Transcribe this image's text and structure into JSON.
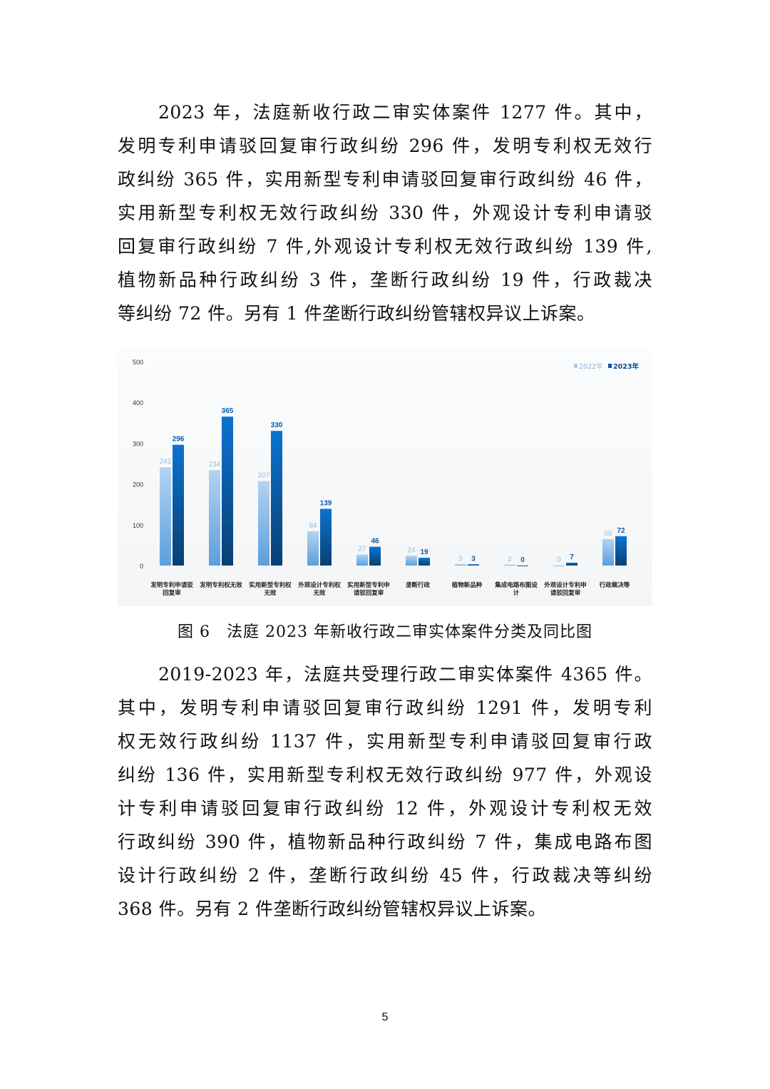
{
  "paragraph1": [
    "2023 年，法庭新收行政二审实体案件 1277 件。其中，",
    "发明专利申请驳回复审行政纠纷 296 件，发明专利权无效行",
    "政纠纷 365 件，实用新型专利申请驳回复审行政纠纷 46 件，",
    "实用新型专利权无效行政纠纷 330 件，外观设计专利申请驳",
    "回复审行政纠纷 7 件,外观设计专利权无效行政纠纷 139 件,",
    "植物新品种行政纠纷 3 件，垄断行政纠纷 19 件，行政裁决",
    "等纠纷 72 件。另有 1 件垄断行政纠纷管辖权异议上诉案。"
  ],
  "caption": "图 6　法庭 2023 年新收行政二审实体案件分类及同比图",
  "paragraph2": [
    "2019-2023 年，法庭共受理行政二审实体案件 4365 件。",
    "其中，发明专利申请驳回复审行政纠纷 1291 件，发明专利",
    "权无效行政纠纷 1137 件，实用新型专利申请驳回复审行政",
    "纠纷 136 件，实用新型专利权无效行政纠纷 977 件，外观设",
    "计专利申请驳回复审行政纠纷 12 件，外观设计专利权无效",
    "行政纠纷 390 件，植物新品种行政纠纷 7 件，集成电路布图",
    "设计行政纠纷 2 件，垄断行政纠纷 45 件，行政裁决等纠纷",
    "368 件。另有 2 件垄断行政纠纷管辖权异议上诉案。"
  ],
  "page_number": "5",
  "chart_data": {
    "type": "bar",
    "categories": [
      [
        "发明专利申请驳",
        "回复审"
      ],
      [
        "发明专利权无效"
      ],
      [
        "实用新型专利权",
        "无效"
      ],
      [
        "外观设计专利权",
        "无效"
      ],
      [
        "实用新型专利申",
        "请驳回复审"
      ],
      [
        "垄断行政"
      ],
      [
        "植物新品种"
      ],
      [
        "集成电路布图设",
        "计"
      ],
      [
        "外观设计专利申",
        "请驳回复审"
      ],
      [
        "行政裁决等"
      ]
    ],
    "series": [
      {
        "name": "2022年",
        "values": [
          241,
          234,
          207,
          84,
          27,
          24,
          3,
          2,
          0,
          65
        ],
        "color": "#a9cbee"
      },
      {
        "name": "2023年",
        "values": [
          296,
          365,
          330,
          139,
          46,
          19,
          3,
          0,
          7,
          72
        ],
        "color": "#0a6cc4"
      }
    ],
    "yticks": [
      0,
      100,
      200,
      300,
      400,
      500
    ],
    "ylim": [
      0,
      500
    ],
    "grid": false,
    "legend": "top-right"
  }
}
